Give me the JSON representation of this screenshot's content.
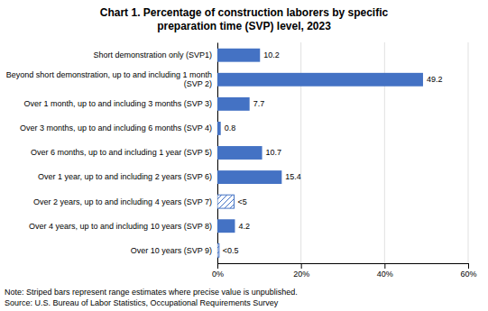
{
  "chart_data": {
    "type": "bar",
    "orientation": "horizontal",
    "title": "Chart 1. Percentage of construction laborers by specific\npreparation time (SVP) level, 2023",
    "categories": [
      "Short demonstration only (SVP1)",
      "Beyond short demonstration, up to and including 1 month\n(SVP 2)",
      "Over 1 month, up to and including 3 months (SVP 3)",
      "Over 3 months, up to and including 6 months (SVP 4)",
      "Over 6 months, up to and including 1 year (SVP 5)",
      "Over 1 year, up to and including 2 years (SVP 6)",
      "Over 2 years, up to and including 4 years (SVP 7)",
      "Over 4 years, up to and including 10 years (SVP 8)",
      "Over 10 years (SVP 9)"
    ],
    "values": [
      10.2,
      49.2,
      7.7,
      0.8,
      10.7,
      15.4,
      4.0,
      4.2,
      0.4
    ],
    "value_labels": [
      "10.2",
      "49.2",
      "7.7",
      "0.8",
      "10.7",
      "15.4",
      "<5",
      "4.2",
      "<0.5"
    ],
    "striped": [
      false,
      false,
      false,
      false,
      false,
      false,
      true,
      false,
      true
    ],
    "color": "#4472c4",
    "xlim": [
      0,
      60
    ],
    "xticks": [
      {
        "value": 0,
        "label": "0%"
      },
      {
        "value": 20,
        "label": "20%"
      },
      {
        "value": 40,
        "label": "40%"
      },
      {
        "value": 60,
        "label": "60%"
      }
    ],
    "grid": true,
    "data_labels": true,
    "note": "Note: Striped bars represent range estimates where precise value is unpublished.\nSource: U.S. Bureau of Labor Statistics, Occupational Requirements Survey"
  }
}
